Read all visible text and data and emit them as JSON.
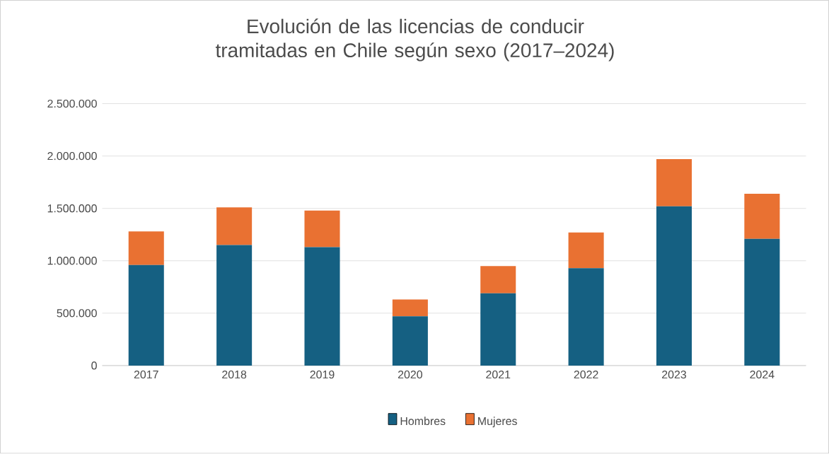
{
  "chart_data": {
    "type": "bar",
    "stacked": true,
    "title": "Evolución de las licencias de conducir tramitadas en Chile según sexo (2017–2024)",
    "categories": [
      "2017",
      "2018",
      "2019",
      "2020",
      "2021",
      "2022",
      "2023",
      "2024"
    ],
    "series": [
      {
        "name": "Hombres",
        "color": "#156082",
        "values": [
          960000,
          1150000,
          1130000,
          470000,
          690000,
          930000,
          1520000,
          1210000
        ]
      },
      {
        "name": "Mujeres",
        "color": "#e97132",
        "values": [
          320000,
          360000,
          350000,
          160000,
          260000,
          340000,
          450000,
          430000
        ]
      }
    ],
    "ylim": [
      0,
      2500000
    ],
    "yticks": [
      0,
      {
        "value": 500000,
        "label": "500.000"
      },
      {
        "value": 1000000,
        "label": "1.000.000"
      },
      {
        "value": 1500000,
        "label": "1.500.000"
      },
      {
        "value": 2000000,
        "label": "2.000.000"
      },
      {
        "value": 2500000,
        "label": "2.500.000"
      }
    ],
    "grid": "y",
    "legend": "bottom"
  }
}
